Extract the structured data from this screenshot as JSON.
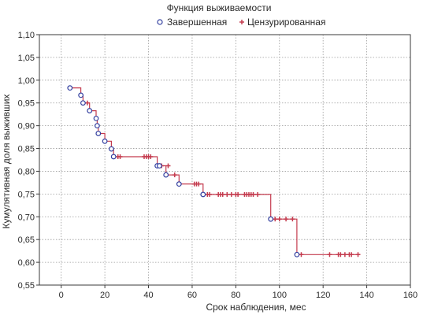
{
  "chart_data": {
    "type": "line",
    "title": "Функция выживаемости",
    "xlabel": "Срок наблюдения, мес",
    "ylabel": "Кумулятивная доля выживших",
    "xlim": [
      -10,
      160
    ],
    "ylim": [
      0.55,
      1.1
    ],
    "x_ticks": [
      0,
      20,
      40,
      60,
      80,
      100,
      120,
      140,
      160
    ],
    "y_ticks": [
      0.55,
      0.6,
      0.65,
      0.7,
      0.75,
      0.8,
      0.85,
      0.9,
      0.95,
      1.0,
      1.05,
      1.1
    ],
    "x_tick_labels": [
      "0",
      "20",
      "40",
      "60",
      "80",
      "100",
      "120",
      "140",
      "160"
    ],
    "y_tick_labels": [
      "0,55",
      "0,60",
      "0,65",
      "0,70",
      "0,75",
      "0,80",
      "0,85",
      "0,90",
      "0,95",
      "1,00",
      "1,05",
      "1,10"
    ],
    "grid": true,
    "legend_position": "top",
    "colors": {
      "line": "#c43b4e",
      "completed_marker": "#3340a0",
      "censored_marker": "#c43b4e"
    },
    "series": [
      {
        "name": "Завершенная",
        "marker": "circle",
        "points": [
          [
            4,
            0.983
          ],
          [
            9,
            0.967
          ],
          [
            10,
            0.95
          ],
          [
            13,
            0.933
          ],
          [
            16,
            0.916
          ],
          [
            16.5,
            0.9
          ],
          [
            17,
            0.883
          ],
          [
            20,
            0.866
          ],
          [
            23,
            0.849
          ],
          [
            24,
            0.832
          ],
          [
            44,
            0.812
          ],
          [
            45,
            0.812
          ],
          [
            48,
            0.792
          ],
          [
            54,
            0.772
          ],
          [
            65,
            0.749
          ],
          [
            96,
            0.695
          ],
          [
            108,
            0.617
          ]
        ]
      },
      {
        "name": "Цензурированная",
        "marker": "plus",
        "points": [
          [
            12,
            0.95
          ],
          [
            26,
            0.832
          ],
          [
            27,
            0.832
          ],
          [
            38,
            0.832
          ],
          [
            39,
            0.832
          ],
          [
            40,
            0.832
          ],
          [
            41,
            0.832
          ],
          [
            46,
            0.812
          ],
          [
            49,
            0.812
          ],
          [
            52,
            0.792
          ],
          [
            61,
            0.772
          ],
          [
            62,
            0.772
          ],
          [
            63,
            0.772
          ],
          [
            67,
            0.749
          ],
          [
            68,
            0.749
          ],
          [
            72,
            0.749
          ],
          [
            73,
            0.749
          ],
          [
            74,
            0.749
          ],
          [
            76,
            0.749
          ],
          [
            78,
            0.749
          ],
          [
            80,
            0.749
          ],
          [
            81,
            0.749
          ],
          [
            84,
            0.749
          ],
          [
            85,
            0.749
          ],
          [
            86,
            0.749
          ],
          [
            87,
            0.749
          ],
          [
            88,
            0.749
          ],
          [
            90,
            0.749
          ],
          [
            98,
            0.695
          ],
          [
            100,
            0.695
          ],
          [
            103,
            0.695
          ],
          [
            106,
            0.695
          ],
          [
            110,
            0.617
          ],
          [
            123,
            0.617
          ],
          [
            127,
            0.617
          ],
          [
            128,
            0.617
          ],
          [
            130,
            0.617
          ],
          [
            132,
            0.617
          ],
          [
            133,
            0.617
          ],
          [
            136,
            0.617
          ]
        ]
      }
    ],
    "step_path": [
      [
        4,
        0.983
      ],
      [
        9,
        0.983
      ],
      [
        9,
        0.967
      ],
      [
        10,
        0.967
      ],
      [
        10,
        0.95
      ],
      [
        13,
        0.95
      ],
      [
        13,
        0.933
      ],
      [
        16,
        0.933
      ],
      [
        16,
        0.916
      ],
      [
        16.5,
        0.916
      ],
      [
        16.5,
        0.9
      ],
      [
        17,
        0.9
      ],
      [
        17,
        0.883
      ],
      [
        20,
        0.883
      ],
      [
        20,
        0.866
      ],
      [
        23,
        0.866
      ],
      [
        23,
        0.849
      ],
      [
        24,
        0.849
      ],
      [
        24,
        0.832
      ],
      [
        44,
        0.832
      ],
      [
        44,
        0.812
      ],
      [
        48,
        0.812
      ],
      [
        48,
        0.792
      ],
      [
        54,
        0.792
      ],
      [
        54,
        0.772
      ],
      [
        65,
        0.772
      ],
      [
        65,
        0.749
      ],
      [
        96,
        0.749
      ],
      [
        96,
        0.695
      ],
      [
        108,
        0.695
      ],
      [
        108,
        0.617
      ],
      [
        136,
        0.617
      ]
    ]
  }
}
